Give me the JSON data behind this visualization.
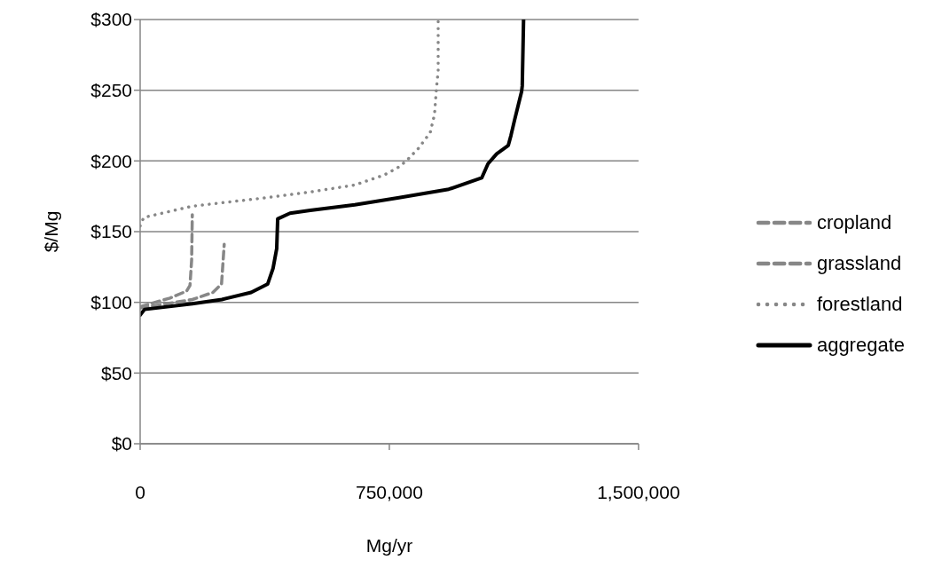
{
  "chart_data": {
    "type": "line",
    "xlabel": "Mg/yr",
    "ylabel": "$/Mg",
    "xlim": [
      0,
      1500000
    ],
    "xticks": [
      0,
      {
        "value": 750000,
        "label": "750,000"
      },
      {
        "value": 1500000,
        "label": "1,500,000"
      }
    ],
    "ylim": [
      0,
      300
    ],
    "yticks": [
      {
        "value": 0,
        "label": "$0"
      },
      {
        "value": 50,
        "label": "$50"
      },
      {
        "value": 100,
        "label": "$100"
      },
      {
        "value": 150,
        "label": "$150"
      },
      {
        "value": 200,
        "label": "$200"
      },
      {
        "value": 250,
        "label": "$250"
      },
      {
        "value": 300,
        "label": "$300"
      }
    ],
    "grid": "y",
    "legend": "right",
    "marker": "none",
    "series": [
      {
        "name": "cropland",
        "color": "#878787",
        "line_style": "dashed",
        "x": [
          0,
          157000,
          219000,
          245000,
          253000
        ],
        "values": [
          96,
          102,
          107,
          113,
          141
        ]
      },
      {
        "name": "grassland",
        "color": "#878787",
        "line_style": "dashed",
        "x": [
          0,
          90000,
          140000,
          150000,
          155000,
          157000
        ],
        "values": [
          97,
          103,
          108,
          112,
          130,
          162
        ]
      },
      {
        "name": "forestland",
        "color": "#878787",
        "line_style": "dotted",
        "x": [
          0,
          10700,
          157000,
          379000,
          512000,
          646000,
          734000,
          774000,
          801000,
          838000,
          873000,
          886000,
          891000,
          897000,
          897000
        ],
        "values": [
          154,
          160,
          168,
          174,
          178,
          183,
          190,
          195,
          200,
          209,
          220,
          233,
          249,
          264,
          300
        ]
      },
      {
        "name": "aggregate",
        "color": "#000000",
        "line_style": "solid",
        "x": [
          0,
          13300,
          157000,
          246000,
          334000,
          384000,
          400000,
          411000,
          414000,
          451000,
          512000,
          646000,
          779000,
          929000,
          1028000,
          1047000,
          1073000,
          1108000,
          1116000,
          1127000,
          1148000,
          1150000,
          1154000
        ],
        "values": [
          91,
          95,
          99,
          102,
          107,
          113,
          124,
          138,
          159,
          163,
          165,
          169,
          174,
          180,
          188,
          198,
          205,
          211,
          218,
          229,
          249,
          253,
          300
        ]
      }
    ]
  }
}
